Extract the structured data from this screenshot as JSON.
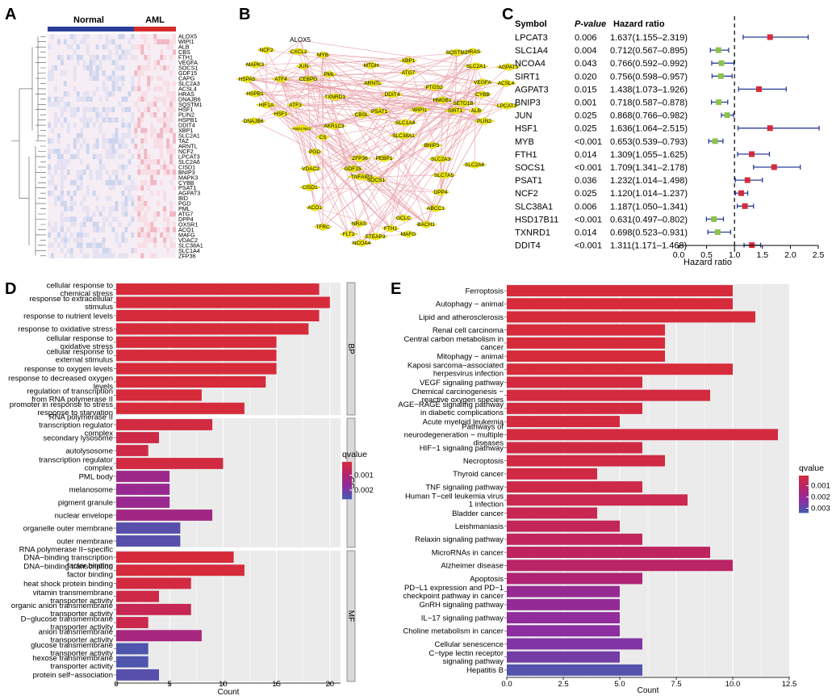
{
  "panels": {
    "A": "A",
    "B": "B",
    "C": "C",
    "D": "D",
    "E": "E"
  },
  "colors": {
    "normal": "#2b3d9a",
    "aml": "#d62b2b",
    "node": "#f2ea12",
    "edge": "#e8a0a8",
    "hr_high": "#d62b3b",
    "hr_low": "#8bc34a",
    "ci": "#2b3d9a",
    "strip": "#d9d9d9",
    "panel_bg": "#ebebeb",
    "grid": "#ffffff"
  },
  "heatmap": {
    "groups": [
      "Normal",
      "AML"
    ],
    "genes": [
      "ALOX5",
      "WIPI1",
      "ALB",
      "CBS",
      "FTH1",
      "VEGFA",
      "SOCS1",
      "GDF15",
      "CAPG",
      "SLC2A3",
      "ACSL4",
      "HRAS",
      "DNAJB6",
      "SQSTM1",
      "HSF1",
      "PLIN2",
      "HSPB1",
      "DDIT4",
      "XBP1",
      "SLC2A1",
      "TAZ",
      "ARNTL",
      "NCF2",
      "LPCAT3",
      "SLC2A6",
      "CISD1",
      "BNIP3",
      "MAPK3",
      "CYBB",
      "PSAT1",
      "AGPAT3",
      "BID",
      "PGD",
      "PML",
      "ATG7",
      "DPP4",
      "OXSR1",
      "ACO1",
      "MAFG",
      "VDAC2",
      "SLC38A1",
      "SLC1A4",
      "ZFP36"
    ]
  },
  "network": {
    "nodes": [
      "ALOX5",
      "NCF2",
      "CXCL2",
      "MAPK3",
      "JUN",
      "MYB",
      "HSPA5",
      "ATF4",
      "CEBPG",
      "PML",
      "MTDH",
      "ARNTL",
      "HSPB1",
      "HIF1A",
      "ATF3",
      "HSF1",
      "DNAJB6",
      "TXNRD1",
      "CBSL",
      "HSD17B11",
      "AKR1C3",
      "PSAT1",
      "CS",
      "DDIT4",
      "ATG7",
      "XBP1",
      "SQSTM1",
      "HRAS",
      "SLC2A1",
      "AGPAT3",
      "ACSL4",
      "VEGFA",
      "PTGS2",
      "HMGB1",
      "CYBB",
      "SETD1B",
      "ALB",
      "WIPI1",
      "SIRT1",
      "LPCAT3",
      "SLC1A4",
      "SLC38A1",
      "PLIN2",
      "PGD",
      "ZFP36",
      "PEBP1",
      "BNIP3",
      "SLC2A3",
      "GDF15",
      "TNFAIP3",
      "SOCS1",
      "SLC7A5",
      "SLC2A6",
      "VDAC2",
      "DPP4",
      "CISD1",
      "ACO1",
      "ABCC1",
      "TFRC",
      "NRAS",
      "FLT3",
      "FTH1",
      "BACH1",
      "GCLC",
      "STEAP3",
      "NCOA4",
      "MAFG"
    ]
  },
  "forest": {
    "headers": {
      "symbol": "Symbol",
      "pvalue": "P-value",
      "hr": "Hazard ratio"
    },
    "rows": [
      {
        "symbol": "LPCAT3",
        "p": "0.006",
        "hr_text": "1.637(1.155–2.319)",
        "hr": 1.637,
        "lo": 1.155,
        "hi": 2.319
      },
      {
        "symbol": "SLC1A4",
        "p": "0.004",
        "hr_text": "0.712(0.567–0.895)",
        "hr": 0.712,
        "lo": 0.567,
        "hi": 0.895
      },
      {
        "symbol": "NCOA4",
        "p": "0.043",
        "hr_text": "0.766(0.592–0.992)",
        "hr": 0.766,
        "lo": 0.592,
        "hi": 0.992
      },
      {
        "symbol": "SIRT1",
        "p": "0.020",
        "hr_text": "0.756(0.598–0.957)",
        "hr": 0.756,
        "lo": 0.598,
        "hi": 0.957
      },
      {
        "symbol": "AGPAT3",
        "p": "0.015",
        "hr_text": "1.438(1.073–1.926)",
        "hr": 1.438,
        "lo": 1.073,
        "hi": 1.926
      },
      {
        "symbol": "BNIP3",
        "p": "0.001",
        "hr_text": "0.718(0.587–0.878)",
        "hr": 0.718,
        "lo": 0.587,
        "hi": 0.878
      },
      {
        "symbol": "JUN",
        "p": "0.025",
        "hr_text": "0.868(0.766–0.982)",
        "hr": 0.868,
        "lo": 0.766,
        "hi": 0.982
      },
      {
        "symbol": "HSF1",
        "p": "0.025",
        "hr_text": "1.636(1.064–2.515)",
        "hr": 1.636,
        "lo": 1.064,
        "hi": 2.515
      },
      {
        "symbol": "MYB",
        "p": "<0.001",
        "hr_text": "0.653(0.539–0.793)",
        "hr": 0.653,
        "lo": 0.539,
        "hi": 0.793
      },
      {
        "symbol": "FTH1",
        "p": "0.014",
        "hr_text": "1.309(1.055–1.625)",
        "hr": 1.309,
        "lo": 1.055,
        "hi": 1.625
      },
      {
        "symbol": "SOCS1",
        "p": "<0.001",
        "hr_text": "1.709(1.341–2.178)",
        "hr": 1.709,
        "lo": 1.341,
        "hi": 2.178
      },
      {
        "symbol": "PSAT1",
        "p": "0.036",
        "hr_text": "1.232(1.014–1.498)",
        "hr": 1.232,
        "lo": 1.014,
        "hi": 1.498
      },
      {
        "symbol": "NCF2",
        "p": "0.025",
        "hr_text": "1.120(1.014–1.237)",
        "hr": 1.12,
        "lo": 1.014,
        "hi": 1.237
      },
      {
        "symbol": "SLC38A1",
        "p": "0.006",
        "hr_text": "1.187(1.050–1.341)",
        "hr": 1.187,
        "lo": 1.05,
        "hi": 1.341
      },
      {
        "symbol": "HSD17B11",
        "p": "<0.001",
        "hr_text": "0.631(0.497–0.802)",
        "hr": 0.631,
        "lo": 0.497,
        "hi": 0.802
      },
      {
        "symbol": "TXNRD1",
        "p": "0.014",
        "hr_text": "0.698(0.523–0.931)",
        "hr": 0.698,
        "lo": 0.523,
        "hi": 0.931
      },
      {
        "symbol": "DDIT4",
        "p": "<0.001",
        "hr_text": "1.311(1.171–1.468)",
        "hr": 1.311,
        "lo": 1.171,
        "hi": 1.468
      }
    ],
    "xticks": [
      "0.0",
      "0.5",
      "1.0",
      "1.5",
      "2.0",
      "2.5"
    ],
    "xmin": 0,
    "xmax": 2.5,
    "ref": 1.0,
    "xlabel": "Hazard ratio"
  },
  "chart_data": [
    {
      "type": "bar",
      "orientation": "horizontal",
      "panel": "D",
      "xlabel": "Count",
      "xlim": [
        0,
        21
      ],
      "xticks": [
        "0",
        "5",
        "10",
        "15",
        "20"
      ],
      "legend_title": "qvalue",
      "legend_ticks": [
        "0.001",
        "0.002"
      ],
      "facets": [
        {
          "name": "BP",
          "categories": [
            {
              "label": "cellular response to\nchemical stress",
              "count": 19,
              "q": 0.0001
            },
            {
              "label": "response to extracellular\nstimulus",
              "count": 20,
              "q": 0.0001
            },
            {
              "label": "response to nutrient levels",
              "count": 19,
              "q": 0.0001
            },
            {
              "label": "response to oxidative stress",
              "count": 18,
              "q": 0.0001
            },
            {
              "label": "cellular response to\noxidative stress",
              "count": 15,
              "q": 0.0001
            },
            {
              "label": "cellular response to\nexternal stimulus",
              "count": 15,
              "q": 0.0001
            },
            {
              "label": "response to oxygen levels",
              "count": 15,
              "q": 0.0001
            },
            {
              "label": "response to decreased oxygen\nlevels",
              "count": 14,
              "q": 0.0001
            },
            {
              "label": "regulation of transcription\nfrom RNA polymerase II",
              "count": 8,
              "q": 0.0001
            },
            {
              "label": "promoter in response to stress\nresponse to starvation",
              "count": 12,
              "q": 0.0001
            }
          ]
        },
        {
          "name": "CC",
          "categories": [
            {
              "label": "RNA polymerase II\ntranscription regulator\ncomplex",
              "count": 9,
              "q": 0.0002
            },
            {
              "label": "secondary lysosome",
              "count": 4,
              "q": 0.0003
            },
            {
              "label": "autolysosome",
              "count": 3,
              "q": 0.0003
            },
            {
              "label": "transcription regulator\ncomplex",
              "count": 10,
              "q": 0.0002
            },
            {
              "label": "PML body",
              "count": 5,
              "q": 0.0014
            },
            {
              "label": "melanosome",
              "count": 5,
              "q": 0.0015
            },
            {
              "label": "pigment granule",
              "count": 5,
              "q": 0.0015
            },
            {
              "label": "nuclear envelope",
              "count": 9,
              "q": 0.0013
            },
            {
              "label": "organelle outer membrane",
              "count": 6,
              "q": 0.0024
            },
            {
              "label": "outer membrane",
              "count": 6,
              "q": 0.0024
            }
          ]
        },
        {
          "name": "MF",
          "categories": [
            {
              "label": "RNA polymerase II−specific\nDNA−binding transcription\nfactor binding",
              "count": 11,
              "q": 0.0001
            },
            {
              "label": "DNA−binding transcription\nfactor binding",
              "count": 12,
              "q": 0.0001
            },
            {
              "label": "heat shock protein binding",
              "count": 7,
              "q": 0.0002
            },
            {
              "label": "vitamin transmembrane\ntransporter activity",
              "count": 4,
              "q": 0.0003
            },
            {
              "label": "organic anion transmembrane\ntransporter activity",
              "count": 7,
              "q": 0.0005
            },
            {
              "label": "D−glucose transmembrane\ntransporter activity",
              "count": 3,
              "q": 0.0004
            },
            {
              "label": "anion transmembrane\ntransporter activity",
              "count": 8,
              "q": 0.0012
            },
            {
              "label": "glucose transmembrane\ntransporter activity",
              "count": 3,
              "q": 0.0025
            },
            {
              "label": "hexose transmembrane\ntransporter activity",
              "count": 3,
              "q": 0.0025
            },
            {
              "label": "protein self−association",
              "count": 4,
              "q": 0.0024
            }
          ]
        }
      ]
    },
    {
      "type": "bar",
      "orientation": "horizontal",
      "panel": "E",
      "xlabel": "Count",
      "xlim": [
        0,
        12.5
      ],
      "xticks": [
        "0.0",
        "2.5",
        "5.0",
        "7.5",
        "10.0",
        "12.5"
      ],
      "legend_title": "qvalue",
      "legend_ticks": [
        "0.001",
        "0.002",
        "0.003"
      ],
      "categories": [
        {
          "label": "Ferroptosis",
          "count": 10,
          "q": 0.0001
        },
        {
          "label": "Autophagy − animal",
          "count": 10,
          "q": 0.0001
        },
        {
          "label": "Lipid and atherosclerosis",
          "count": 11,
          "q": 0.0001
        },
        {
          "label": "Renal cell carcinoma",
          "count": 7,
          "q": 0.0001
        },
        {
          "label": "Central carbon metabolism in\ncancer",
          "count": 7,
          "q": 0.0001
        },
        {
          "label": "Mitophagy − animal",
          "count": 7,
          "q": 0.0001
        },
        {
          "label": "Kaposi sarcoma−associated\nherpesvirus infection",
          "count": 10,
          "q": 0.0001
        },
        {
          "label": "VEGF signaling pathway",
          "count": 6,
          "q": 0.0002
        },
        {
          "label": "Chemical carcinogenesis −\nreactive oxygen species",
          "count": 9,
          "q": 0.0002
        },
        {
          "label": "AGE−RAGE signaling pathway\nin diabetic complications",
          "count": 6,
          "q": 0.0002
        },
        {
          "label": "Acute myeloid leukemia",
          "count": 5,
          "q": 0.0002
        },
        {
          "label": "Pathways of\nneurodegeneration − multiple\ndiseases",
          "count": 12,
          "q": 0.0002
        },
        {
          "label": "HIF−1 signaling pathway",
          "count": 6,
          "q": 0.0003
        },
        {
          "label": "Necroptosis",
          "count": 7,
          "q": 0.0003
        },
        {
          "label": "Thyroid cancer",
          "count": 4,
          "q": 0.0003
        },
        {
          "label": "TNF signaling pathway",
          "count": 6,
          "q": 0.0004
        },
        {
          "label": "Human T−cell leukemia virus\n1 infection",
          "count": 8,
          "q": 0.0005
        },
        {
          "label": "Bladder cancer",
          "count": 4,
          "q": 0.0006
        },
        {
          "label": "Leishmaniasis",
          "count": 5,
          "q": 0.0007
        },
        {
          "label": "Relaxin signaling pathway",
          "count": 6,
          "q": 0.0008
        },
        {
          "label": "MicroRNAs in cancer",
          "count": 9,
          "q": 0.0009
        },
        {
          "label": "Alzheimer disease",
          "count": 10,
          "q": 0.001
        },
        {
          "label": "Apoptosis",
          "count": 6,
          "q": 0.0013
        },
        {
          "label": "PD−L1 expression and PD−1\ncheckpoint pathway in cancer",
          "count": 5,
          "q": 0.002
        },
        {
          "label": "GnRH signaling pathway",
          "count": 5,
          "q": 0.0021
        },
        {
          "label": "IL−17 signaling pathway",
          "count": 5,
          "q": 0.0022
        },
        {
          "label": "Choline metabolism in cancer",
          "count": 5,
          "q": 0.0023
        },
        {
          "label": "Cellular senescence",
          "count": 6,
          "q": 0.0025
        },
        {
          "label": "C−type lectin receptor\nsignaling pathway",
          "count": 5,
          "q": 0.0027
        },
        {
          "label": "Hepatitis B",
          "count": 6,
          "q": 0.0032
        }
      ]
    }
  ]
}
